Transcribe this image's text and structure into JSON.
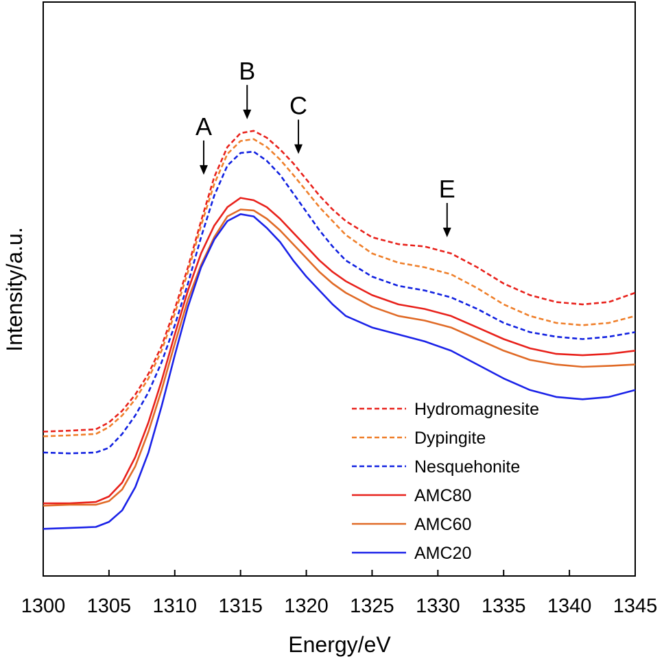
{
  "chart_data": {
    "type": "line",
    "title": "",
    "xlabel": "Energy/eV",
    "ylabel": "Intensity/a.u.",
    "xlim": [
      1300,
      1345
    ],
    "ylim": [
      0,
      100
    ],
    "y_ticks_shown": false,
    "grid": false,
    "legend_position": "lower-right",
    "x_ticks": [
      1300,
      1305,
      1310,
      1315,
      1320,
      1325,
      1330,
      1335,
      1340,
      1345
    ],
    "x_tick_labels": [
      "1300",
      "1305",
      "1310",
      "1315",
      "1320",
      "1325",
      "1330",
      "1335",
      "1340",
      "1345"
    ],
    "x": [
      1300,
      1302,
      1304,
      1305,
      1306,
      1307,
      1308,
      1309,
      1310,
      1311,
      1312,
      1313,
      1314,
      1315,
      1316,
      1317,
      1318,
      1319,
      1320,
      1321,
      1322,
      1323,
      1325,
      1327,
      1329,
      1331,
      1333,
      1335,
      1337,
      1339,
      1341,
      1343,
      1345
    ],
    "series": [
      {
        "name": "Hydromagnesite",
        "color": "#e8211b",
        "dash": "dashed",
        "values": [
          26.0,
          26.2,
          26.5,
          28.0,
          30.5,
          34.0,
          38.5,
          44.5,
          52.5,
          61.5,
          71.5,
          81.0,
          87.5,
          90.5,
          91.0,
          89.5,
          87.0,
          84.0,
          80.5,
          77.0,
          74.0,
          71.5,
          68.0,
          66.5,
          66.0,
          64.5,
          61.5,
          58.0,
          55.5,
          54.0,
          53.5,
          54.0,
          56.0
        ]
      },
      {
        "name": "Dypingite",
        "color": "#ef7f2a",
        "dash": "dashed",
        "values": [
          25.0,
          25.2,
          25.5,
          27.0,
          29.5,
          33.0,
          37.5,
          43.5,
          51.5,
          60.5,
          70.5,
          79.5,
          86.0,
          88.8,
          89.2,
          87.5,
          84.8,
          81.5,
          78.0,
          74.5,
          71.5,
          68.5,
          64.5,
          62.5,
          61.5,
          60.0,
          57.0,
          53.5,
          51.0,
          49.5,
          49.0,
          49.5,
          51.0
        ]
      },
      {
        "name": "Nesquehonite",
        "color": "#1020e0",
        "dash": "dashed",
        "values": [
          21.5,
          21.3,
          21.5,
          22.5,
          25.5,
          29.5,
          34.5,
          41.0,
          49.0,
          58.0,
          68.0,
          77.0,
          83.5,
          86.2,
          86.5,
          84.5,
          81.5,
          77.5,
          73.5,
          69.5,
          66.0,
          63.0,
          59.5,
          57.5,
          56.5,
          55.0,
          52.5,
          49.5,
          47.5,
          46.5,
          46.0,
          46.5,
          47.5
        ]
      },
      {
        "name": "AMC80",
        "color": "#e8211b",
        "dash": "solid",
        "values": [
          10.5,
          10.5,
          10.8,
          12.0,
          15.0,
          20.5,
          28.0,
          37.0,
          47.0,
          56.5,
          64.5,
          70.5,
          74.5,
          76.5,
          76.0,
          74.5,
          72.0,
          69.0,
          66.0,
          63.0,
          60.5,
          58.5,
          55.5,
          53.5,
          52.5,
          51.0,
          48.5,
          46.0,
          44.0,
          42.8,
          42.5,
          42.8,
          43.5
        ]
      },
      {
        "name": "AMC60",
        "color": "#e06a26",
        "dash": "solid",
        "values": [
          10.0,
          10.2,
          10.2,
          11.0,
          13.5,
          18.5,
          26.0,
          35.0,
          45.0,
          54.5,
          62.0,
          68.0,
          72.5,
          74.0,
          73.8,
          72.0,
          69.5,
          66.5,
          63.5,
          60.5,
          58.0,
          56.0,
          53.0,
          51.0,
          50.0,
          48.5,
          46.0,
          43.5,
          41.5,
          40.5,
          40.0,
          40.2,
          40.5
        ]
      },
      {
        "name": "AMC20",
        "color": "#1a22e8",
        "dash": "solid",
        "values": [
          5.0,
          5.2,
          5.4,
          6.5,
          9.0,
          14.0,
          21.5,
          31.5,
          42.5,
          53.0,
          61.5,
          67.5,
          71.5,
          73.0,
          72.5,
          70.0,
          67.0,
          63.0,
          59.5,
          56.5,
          53.5,
          51.0,
          48.5,
          47.0,
          45.5,
          43.5,
          40.5,
          37.5,
          35.0,
          33.5,
          33.0,
          33.5,
          35.0
        ]
      }
    ],
    "annotations": [
      {
        "label": "A",
        "x": 1312.2,
        "y": 81.5
      },
      {
        "label": "B",
        "x": 1315.5,
        "y": 93.5
      },
      {
        "label": "C",
        "x": 1319.4,
        "y": 86.0
      },
      {
        "label": "E",
        "x": 1330.7,
        "y": 68.0
      }
    ]
  }
}
